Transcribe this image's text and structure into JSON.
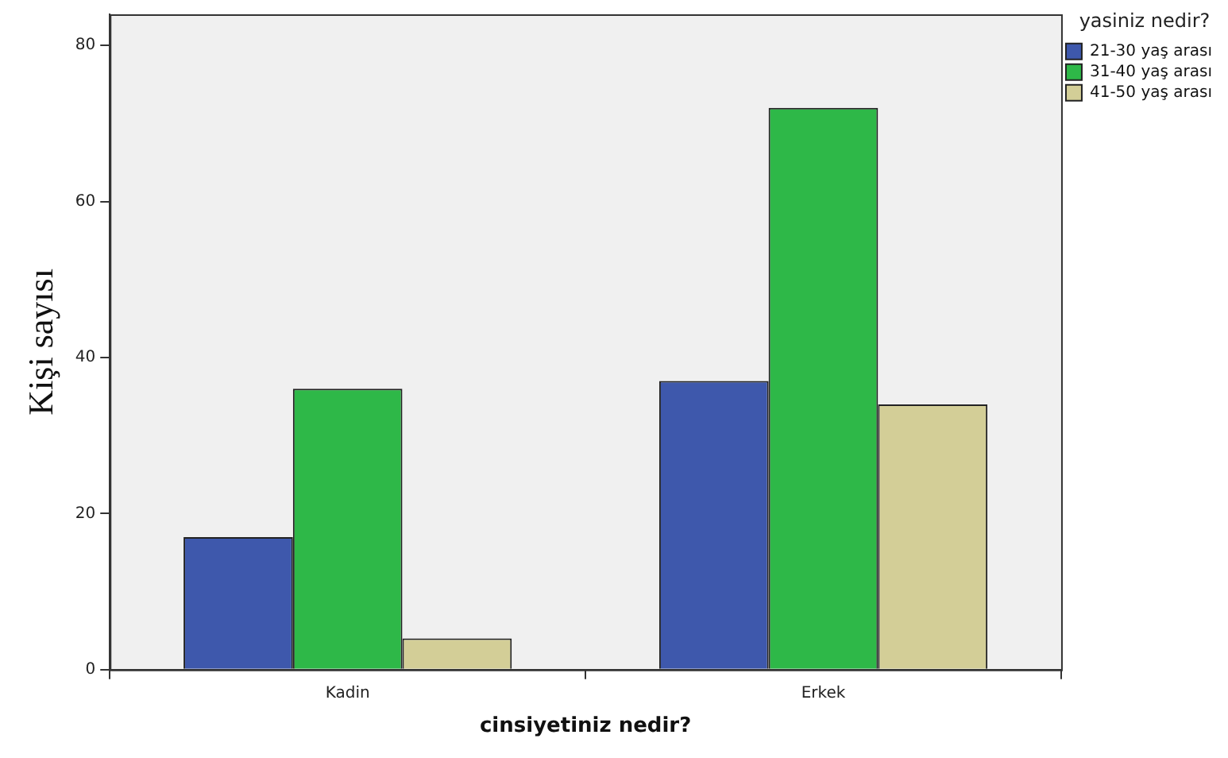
{
  "chart_data": {
    "type": "bar",
    "xlabel": "cinsiyetiniz nedir?",
    "ylabel": "Kişi sayısı",
    "legend_title": "yasiniz nedir?",
    "categories": [
      "Kadin",
      "Erkek"
    ],
    "series": [
      {
        "name": "21-30 yaş arası",
        "color": "#3e58ac",
        "values": [
          17,
          37
        ]
      },
      {
        "name": "31-40 yaş arası",
        "color": "#2eb848",
        "values": [
          36,
          72
        ]
      },
      {
        "name": "41-50 yaş arası",
        "color": "#d3ce97",
        "values": [
          4,
          34
        ]
      }
    ],
    "ylim": [
      0,
      84
    ],
    "yticks": [
      0,
      20,
      40,
      60,
      80
    ],
    "grid": false,
    "legend": "top right"
  }
}
